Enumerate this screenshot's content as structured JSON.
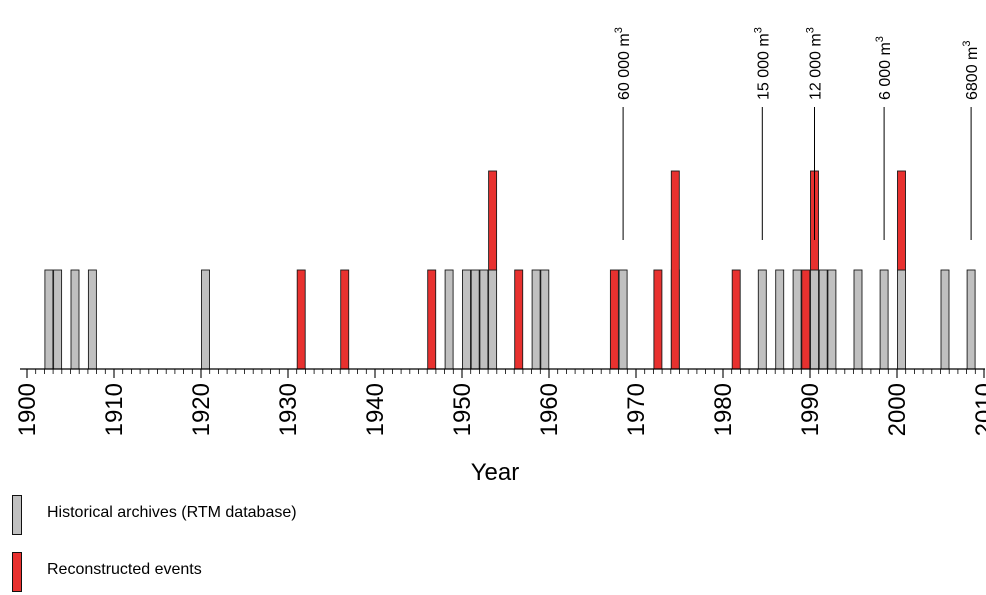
{
  "chart_data": {
    "type": "bar",
    "xlabel": "Year",
    "ylabel": "",
    "title": "",
    "xlim": [
      1900,
      2010
    ],
    "xticks": [
      "1900",
      "1910",
      "1920",
      "1930",
      "1940",
      "1950",
      "1960",
      "1970",
      "1980",
      "1990",
      "2000",
      "2010"
    ],
    "grid": false,
    "legend_placement": "bottom-left",
    "series": [
      {
        "name": "Historical archives (RTM database)",
        "color": "#c0c0c0",
        "x": [
          1902,
          1903,
          1905,
          1907,
          1920,
          1948,
          1950,
          1951,
          1952,
          1953,
          1958,
          1959,
          1968,
          1974,
          1984,
          1986,
          1988,
          1990,
          1991,
          1992,
          1995,
          1998,
          2000,
          2005,
          2008
        ],
        "values": [
          1,
          1,
          1,
          1,
          1,
          1,
          1,
          1,
          1,
          1,
          1,
          1,
          1,
          1,
          1,
          1,
          1,
          1,
          1,
          1,
          1,
          1,
          1,
          1,
          1
        ]
      },
      {
        "name": "Reconstructed events",
        "color": "#e8312f",
        "x": [
          1931,
          1936,
          1946,
          1953,
          1956,
          1967,
          1972,
          1974,
          1981,
          1989,
          1990,
          2000
        ],
        "bottom": [
          0,
          0,
          0,
          1,
          0,
          0,
          0,
          0,
          0,
          0,
          1,
          1
        ],
        "values": [
          1,
          1,
          1,
          1,
          1,
          1,
          1,
          2,
          1,
          1,
          1,
          1
        ]
      }
    ],
    "annotations": [
      {
        "year": 1968,
        "text": "60 000 m",
        "sup": "3"
      },
      {
        "year": 1984,
        "text": "15 000 m",
        "sup": "3"
      },
      {
        "year": 1990,
        "text": "12 000 m",
        "sup": "3"
      },
      {
        "year": 1998,
        "text": "6 000 m",
        "sup": "3"
      },
      {
        "year": 2008,
        "text": "6800  m",
        "sup": "3"
      }
    ]
  },
  "legend": {
    "items": [
      {
        "label": "Historical archives (RTM database)",
        "color": "#c0c0c0"
      },
      {
        "label": "Reconstructed events",
        "color": "#e8312f"
      }
    ]
  }
}
